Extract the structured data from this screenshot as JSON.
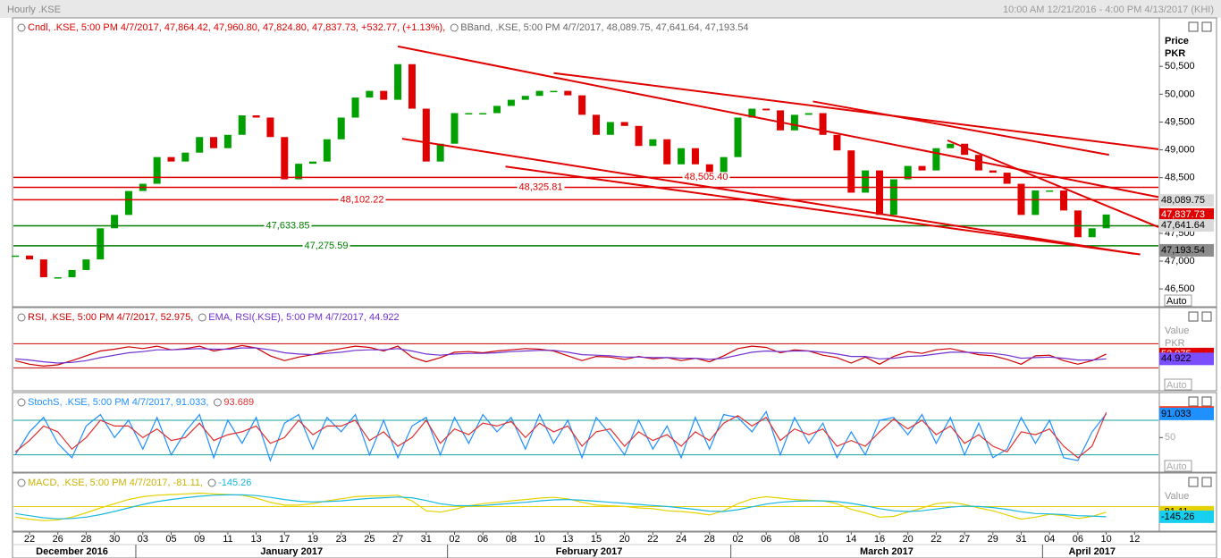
{
  "window": {
    "title": "Hourly .KSE",
    "range": "10:00 AM 12/21/2016 - 4:00 PM 4/13/2017 (KHI)"
  },
  "chart_data": [
    {
      "type": "candlestick",
      "legend": [
        {
          "text": "Cndl, .KSE, 5:00 PM 4/7/2017, 47,864.42, 47,960.80, 47,824.80, 47,837.73, +532.77, (+1.13%),",
          "color": "#e00000"
        },
        {
          "text": "BBand, .KSE, 5:00 PM 4/7/2017, 48,089.75, 47,641.64, 47,193.54",
          "color": "#666666"
        }
      ],
      "axis_title": [
        "Price",
        "PKR"
      ],
      "auto_label": "Auto",
      "categories": [
        null,
        "22",
        null,
        "26",
        null,
        "28",
        null,
        "30",
        null,
        "03",
        null,
        "05",
        null,
        "09",
        null,
        "11",
        null,
        "13",
        null,
        "17",
        null,
        "19",
        null,
        "23",
        null,
        "25",
        null,
        "27",
        null,
        "31",
        null,
        "02",
        null,
        "06",
        null,
        "08",
        null,
        "10",
        null,
        "13",
        null,
        "15",
        null,
        "20",
        null,
        "22",
        null,
        "24",
        null,
        "28",
        null,
        "02",
        null,
        "06",
        null,
        "08",
        null,
        "10",
        null,
        "14",
        null,
        "16",
        null,
        "20",
        null,
        "22",
        null,
        "27",
        null,
        "29",
        null,
        "31",
        null,
        "04",
        null,
        "06",
        null,
        "10",
        null,
        "12"
      ],
      "months": [
        {
          "label": "December 2016",
          "from": 0,
          "to": 8
        },
        {
          "label": "January 2017",
          "from": 9,
          "to": 30
        },
        {
          "label": "February 2017",
          "from": 31,
          "to": 50
        },
        {
          "label": "March 2017",
          "from": 51,
          "to": 72
        },
        {
          "label": "April 2017",
          "from": 73,
          "to": 79
        }
      ],
      "values": [
        47100,
        47030,
        46710,
        46710,
        46840,
        47030,
        47590,
        47830,
        48260,
        48390,
        48870,
        48790,
        48950,
        49230,
        49030,
        49270,
        49620,
        49580,
        49230,
        48470,
        48750,
        48790,
        49190,
        49580,
        49940,
        50060,
        49900,
        50540,
        49740,
        48790,
        49110,
        49660,
        49660,
        49660,
        49790,
        49900,
        49970,
        50060,
        50060,
        49980,
        49630,
        49270,
        49500,
        49430,
        49070,
        49190,
        48740,
        49030,
        48740,
        48470,
        48870,
        49580,
        49740,
        49710,
        49350,
        49630,
        49660,
        49270,
        48990,
        48230,
        48630,
        47830,
        48470,
        48710,
        48630,
        49030,
        49110,
        48910,
        48630,
        48590,
        48390,
        47830,
        48270,
        48270,
        47910,
        47430,
        47590,
        47837.73,
        null,
        null
      ],
      "colors": {
        "up": "#00a000",
        "down": "#e00000"
      },
      "ylim": [
        46180,
        51340
      ],
      "yticks": [
        {
          "value": 50500,
          "label": "50,500"
        },
        {
          "value": 50000,
          "label": "50,000"
        },
        {
          "value": 49500,
          "label": "49,500"
        },
        {
          "value": 49000,
          "label": "49,000"
        },
        {
          "value": 48500,
          "label": "48,500"
        },
        {
          "value": 47500,
          "label": "47,500"
        },
        {
          "value": 47000,
          "label": "47,000"
        },
        {
          "value": 46500,
          "label": "46,500"
        }
      ],
      "hlines": [
        {
          "value": 48505.4,
          "label": "48,505.40",
          "color": "#e00000"
        },
        {
          "value": 48325.81,
          "label": "48,325.81",
          "color": "#e00000"
        },
        {
          "value": 48102.22,
          "label": "48,102.22",
          "color": "#e00000"
        },
        {
          "value": 47633.85,
          "label": "47,633.85",
          "color": "#008000"
        },
        {
          "value": 47275.59,
          "label": "47,275.59",
          "color": "#008000"
        }
      ],
      "trendlines": [
        {
          "x": [
            27.0,
            80.7
          ],
          "y": [
            50860,
            48150
          ]
        },
        {
          "x": [
            38.0,
            80.7
          ],
          "y": [
            50380,
            49010
          ]
        },
        {
          "x": [
            56.3,
            77.2
          ],
          "y": [
            49870,
            48910
          ]
        },
        {
          "x": [
            27.3,
            79.0
          ],
          "y": [
            49200,
            47130
          ]
        },
        {
          "x": [
            34.6,
            79.4
          ],
          "y": [
            48700,
            47120
          ]
        },
        {
          "x": [
            65.8,
            80.7
          ],
          "y": [
            49170,
            47610
          ]
        }
      ],
      "trend_color": "#e00000",
      "tags": [
        {
          "value": 48089.75,
          "label": "48,089.75",
          "color": "#d9d9d9"
        },
        {
          "value": 47837.73,
          "label": "47,837.73",
          "color": "#e00000"
        },
        {
          "value": 47641.64,
          "label": "47,641.64",
          "color": "#d9d9d9"
        },
        {
          "value": 47193.54,
          "label": "47,193.54",
          "color": "#8c8c8c"
        }
      ]
    },
    {
      "type": "line",
      "legend": [
        {
          "text": "RSI, .KSE, 5:00 PM 4/7/2017, 52.975,",
          "color": "#cc0000"
        },
        {
          "text": "EMA, RSI(.KSE), 5:00 PM 4/7/2017, 44.922",
          "color": "#7030d0"
        }
      ],
      "axis_title": [
        "Value",
        "PKR"
      ],
      "auto_label": "Auto",
      "ylim": [
        -8,
        127
      ],
      "levels": [
        70,
        30
      ],
      "level_color": "#cc0000",
      "series": [
        {
          "name": "RSI",
          "color": "#cc0000",
          "values": [
            42,
            36,
            33,
            35,
            42,
            50,
            58,
            61,
            65,
            62,
            66,
            60,
            62,
            66,
            58,
            62,
            67,
            63,
            50,
            42,
            48,
            52,
            58,
            62,
            66,
            64,
            58,
            66,
            48,
            40,
            47,
            56,
            57,
            55,
            58,
            60,
            62,
            61,
            58,
            50,
            42,
            49,
            48,
            44,
            49,
            45,
            47,
            42,
            46,
            40,
            50,
            62,
            66,
            64,
            55,
            60,
            58,
            51,
            47,
            38,
            48,
            36,
            49,
            57,
            54,
            60,
            62,
            57,
            52,
            50,
            44,
            36,
            50,
            51,
            42,
            36,
            42,
            52.975,
            null,
            null
          ]
        },
        {
          "name": "EMA",
          "color": "#7030d0",
          "values": [
            45,
            43,
            40,
            38,
            39,
            42,
            47,
            51,
            55,
            57,
            60,
            60,
            61,
            62,
            61,
            61,
            63,
            63,
            60,
            55,
            53,
            52,
            54,
            56,
            59,
            60,
            60,
            62,
            58,
            53,
            51,
            53,
            54,
            54,
            55,
            57,
            58,
            59,
            59,
            56,
            52,
            51,
            50,
            48,
            48,
            47,
            47,
            46,
            46,
            44,
            46,
            51,
            56,
            58,
            57,
            58,
            58,
            56,
            53,
            49,
            49,
            45,
            46,
            49,
            50,
            53,
            56,
            56,
            55,
            54,
            51,
            46,
            47,
            48,
            46,
            43,
            43,
            44.922,
            null,
            null
          ]
        }
      ],
      "tags": [
        {
          "value": 52.975,
          "color": "#e00000"
        },
        {
          "value": 44.922,
          "color": "#7a4dff"
        }
      ]
    },
    {
      "type": "line",
      "legend": [
        {
          "text": "StochS, .KSE, 5:00 PM 4/7/2017, 91.033,",
          "color": "#1e90ff"
        },
        {
          "text": "93.689",
          "color": "#e03030"
        }
      ],
      "axis_title": [
        "PKR"
      ],
      "auto_label": "Auto",
      "ylim": [
        -10,
        125
      ],
      "yticks": [
        50
      ],
      "levels": [
        80,
        20
      ],
      "level_color": "#1aa0a0",
      "series": [
        {
          "name": "%K",
          "color": "#1e90ff",
          "values": [
            20,
            60,
            85,
            40,
            15,
            70,
            90,
            50,
            80,
            30,
            85,
            20,
            60,
            90,
            15,
            80,
            40,
            85,
            10,
            75,
            90,
            30,
            85,
            60,
            90,
            20,
            80,
            15,
            70,
            85,
            20,
            85,
            40,
            90,
            60,
            85,
            30,
            90,
            40,
            80,
            15,
            85,
            55,
            20,
            80,
            30,
            70,
            15,
            85,
            30,
            90,
            85,
            60,
            95,
            20,
            85,
            40,
            75,
            15,
            60,
            20,
            80,
            85,
            55,
            90,
            40,
            85,
            20,
            75,
            15,
            30,
            85,
            40,
            80,
            15,
            10,
            60,
            91.033,
            null,
            null
          ]
        },
        {
          "name": "%D",
          "color": "#e03030",
          "values": [
            25,
            45,
            70,
            60,
            30,
            50,
            80,
            70,
            70,
            50,
            65,
            45,
            50,
            75,
            45,
            55,
            60,
            70,
            40,
            50,
            80,
            55,
            70,
            70,
            80,
            45,
            60,
            35,
            50,
            80,
            40,
            65,
            55,
            75,
            70,
            78,
            50,
            75,
            60,
            70,
            35,
            60,
            65,
            35,
            60,
            45,
            55,
            35,
            60,
            45,
            75,
            88,
            70,
            85,
            45,
            65,
            55,
            65,
            35,
            45,
            35,
            60,
            82,
            65,
            80,
            55,
            70,
            40,
            55,
            35,
            25,
            60,
            55,
            65,
            35,
            15,
            35,
            93.689,
            null,
            null
          ]
        }
      ],
      "tags": [
        {
          "value": 93.689,
          "color": "#ff3b1f"
        },
        {
          "value": 91.033,
          "color": "#1e90ff"
        }
      ]
    },
    {
      "type": "line",
      "legend": [
        {
          "text": "MACD, .KSE, 5:00 PM 4/7/2017, -81.11,",
          "color": "#c8b400"
        },
        {
          "text": "-145.26",
          "color": "#17b8e0"
        }
      ],
      "axis_title": [
        "Value"
      ],
      "ylim": [
        -350,
        450
      ],
      "levels": [
        0
      ],
      "level_color": "#e6d200",
      "series": [
        {
          "name": "MACD",
          "color": "#e6d200",
          "values": [
            -150,
            -180,
            -200,
            -190,
            -150,
            -90,
            -20,
            40,
            100,
            140,
            160,
            170,
            180,
            190,
            180,
            170,
            160,
            120,
            60,
            20,
            20,
            40,
            80,
            110,
            140,
            150,
            150,
            160,
            80,
            -60,
            -80,
            -40,
            10,
            40,
            60,
            80,
            100,
            120,
            130,
            110,
            60,
            20,
            10,
            0,
            -20,
            -30,
            -60,
            -70,
            -90,
            -120,
            -60,
            40,
            110,
            140,
            120,
            100,
            90,
            80,
            40,
            -40,
            -90,
            -150,
            -140,
            -80,
            -20,
            40,
            60,
            30,
            -20,
            -60,
            -120,
            -180,
            -150,
            -110,
            -130,
            -170,
            -140,
            -81.11,
            null,
            null
          ]
        },
        {
          "name": "Signal",
          "color": "#17b8e0",
          "values": [
            -100,
            -130,
            -160,
            -175,
            -170,
            -150,
            -115,
            -70,
            -20,
            30,
            70,
            100,
            125,
            145,
            160,
            165,
            165,
            155,
            130,
            100,
            75,
            65,
            70,
            80,
            100,
            115,
            125,
            135,
            125,
            85,
            40,
            15,
            10,
            15,
            30,
            45,
            60,
            80,
            95,
            100,
            90,
            75,
            60,
            45,
            30,
            15,
            0,
            -20,
            -40,
            -65,
            -70,
            -45,
            -5,
            35,
            60,
            75,
            80,
            80,
            70,
            45,
            10,
            -30,
            -60,
            -70,
            -60,
            -35,
            -10,
            5,
            0,
            -15,
            -40,
            -75,
            -100,
            -105,
            -115,
            -130,
            -135,
            -145.26,
            null,
            null
          ]
        }
      ],
      "tags": [
        {
          "value": -81.11,
          "color": "#e6d200"
        },
        {
          "value": -145.26,
          "color": "#17d0f0"
        }
      ]
    }
  ]
}
